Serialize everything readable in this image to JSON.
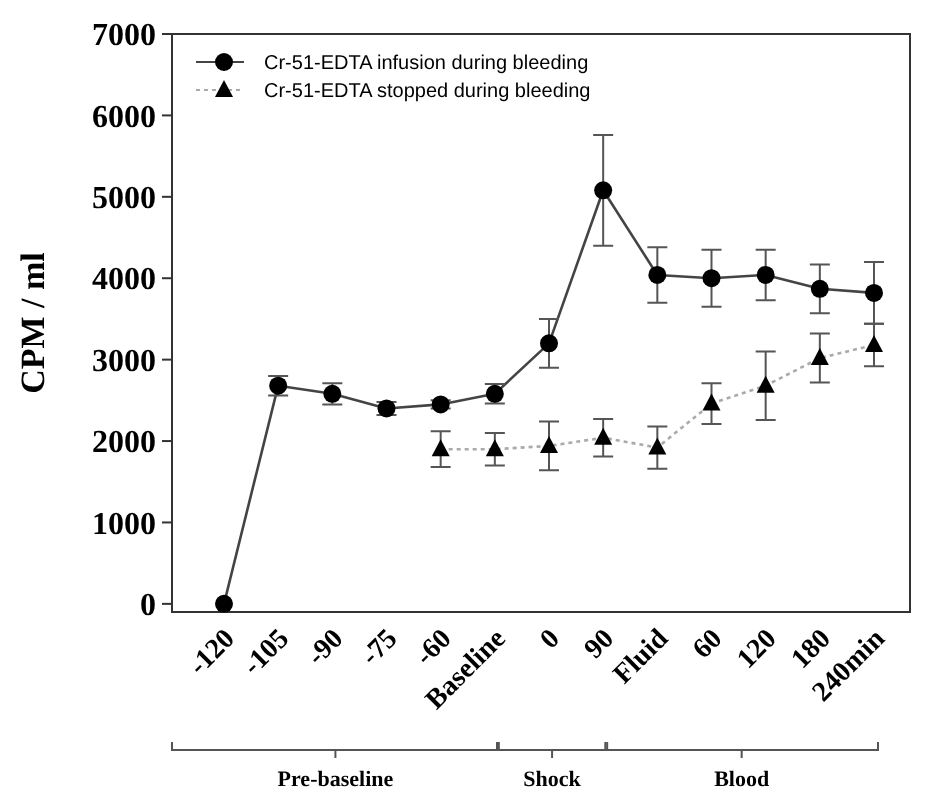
{
  "chart_data": {
    "type": "line",
    "ylabel": "CPM / ml",
    "categories": [
      "-120",
      "-105",
      "-90",
      "-75",
      "-60",
      "Baseline",
      "0",
      "90",
      "Fluid",
      "60",
      "120",
      "180",
      "240min"
    ],
    "ylim": [
      -100,
      7000
    ],
    "yticks": [
      0,
      1000,
      2000,
      3000,
      4000,
      5000,
      6000,
      7000
    ],
    "grid": false,
    "legend": "top left",
    "series": [
      {
        "name": "Cr-51-EDTA infusion during bleeding",
        "color": "#000000",
        "marker": "circle",
        "line_style": "solid",
        "values": [
          0,
          2680,
          2580,
          2400,
          2450,
          2580,
          3200,
          5080,
          4040,
          4000,
          4040,
          3870,
          3820
        ],
        "errors": [
          null,
          120,
          130,
          80,
          50,
          120,
          300,
          680,
          340,
          350,
          310,
          300,
          380
        ]
      },
      {
        "name": "Cr-51-EDTA stopped during bleeding",
        "color": "#000000",
        "marker": "triangle",
        "line_style": "dotted",
        "values": [
          null,
          null,
          null,
          null,
          1900,
          1900,
          1940,
          2040,
          1920,
          2460,
          2680,
          3020,
          3180
        ],
        "errors": [
          null,
          null,
          null,
          null,
          220,
          200,
          300,
          230,
          260,
          250,
          420,
          300,
          260
        ]
      }
    ],
    "annotations": [
      "Pre-baseline",
      "Shock",
      "Blood"
    ]
  }
}
